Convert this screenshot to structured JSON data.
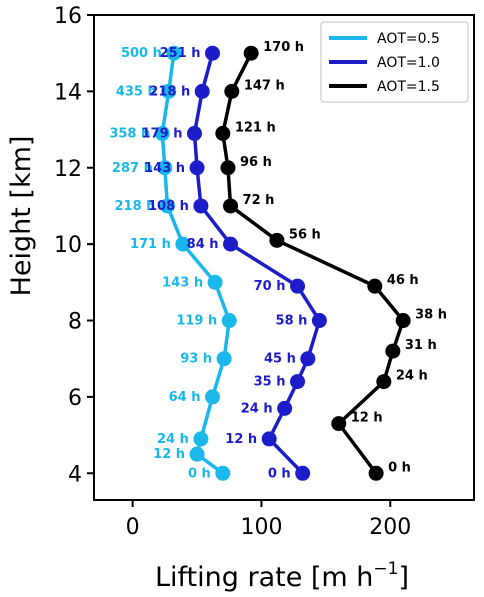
{
  "chart_data": {
    "type": "line",
    "xlabel": "Lifting rate [m h",
    "xlabel_sup": "−1",
    "xlabel_close": "]",
    "ylabel": "Height [km]",
    "xlim": [
      -30,
      265
    ],
    "ylim": [
      3.3,
      16
    ],
    "xticks": [
      0,
      100,
      200
    ],
    "yticks": [
      4,
      6,
      8,
      10,
      12,
      14,
      16
    ],
    "legend_position": "top-right",
    "grid": false,
    "series": [
      {
        "name": "AOT=0.5",
        "color": "#1ab8ea",
        "points": [
          {
            "x": 70,
            "y": 4.0,
            "label": "0 h"
          },
          {
            "x": 50,
            "y": 4.5,
            "label": "12 h"
          },
          {
            "x": 53,
            "y": 4.9,
            "label": "24 h"
          },
          {
            "x": 62,
            "y": 6.0,
            "label": "64 h"
          },
          {
            "x": 71,
            "y": 7.0,
            "label": "93 h"
          },
          {
            "x": 75,
            "y": 8.0,
            "label": "119 h"
          },
          {
            "x": 64,
            "y": 9.0,
            "label": "143 h"
          },
          {
            "x": 39,
            "y": 10.0,
            "label": "171 h"
          },
          {
            "x": 27,
            "y": 11.0,
            "label": "218 h"
          },
          {
            "x": 25,
            "y": 12.0,
            "label": "287 h"
          },
          {
            "x": 23,
            "y": 12.9,
            "label": "358 h"
          },
          {
            "x": 28,
            "y": 14.0,
            "label": "435 h"
          },
          {
            "x": 32,
            "y": 15.0,
            "label": "500 h"
          }
        ]
      },
      {
        "name": "AOT=1.0",
        "color": "#1c1cc9",
        "points": [
          {
            "x": 132,
            "y": 4.0,
            "label": "0 h"
          },
          {
            "x": 106,
            "y": 4.9,
            "label": "12 h"
          },
          {
            "x": 118,
            "y": 5.7,
            "label": "24 h"
          },
          {
            "x": 128,
            "y": 6.4,
            "label": "35 h"
          },
          {
            "x": 136,
            "y": 7.0,
            "label": "45 h"
          },
          {
            "x": 145,
            "y": 8.0,
            "label": "58 h"
          },
          {
            "x": 128,
            "y": 8.9,
            "label": "70 h"
          },
          {
            "x": 76,
            "y": 10.0,
            "label": "84 h"
          },
          {
            "x": 53,
            "y": 11.0,
            "label": "108 h"
          },
          {
            "x": 50,
            "y": 12.0,
            "label": "143 h"
          },
          {
            "x": 48,
            "y": 12.9,
            "label": "179 h"
          },
          {
            "x": 54,
            "y": 14.0,
            "label": "218 h"
          },
          {
            "x": 62,
            "y": 15.0,
            "label": "251 h"
          }
        ]
      },
      {
        "name": "AOT=1.5",
        "color": "#000000",
        "points": [
          {
            "x": 189,
            "y": 4.0,
            "label": "0 h"
          },
          {
            "x": 160,
            "y": 5.3,
            "label": "12 h"
          },
          {
            "x": 195,
            "y": 6.4,
            "label": "24 h"
          },
          {
            "x": 202,
            "y": 7.2,
            "label": "31 h"
          },
          {
            "x": 210,
            "y": 8.0,
            "label": "38 h"
          },
          {
            "x": 188,
            "y": 8.9,
            "label": "46 h"
          },
          {
            "x": 112,
            "y": 10.1,
            "label": "56 h"
          },
          {
            "x": 76,
            "y": 11.0,
            "label": "72 h"
          },
          {
            "x": 74,
            "y": 12.0,
            "label": "96 h"
          },
          {
            "x": 70,
            "y": 12.9,
            "label": "121 h"
          },
          {
            "x": 77,
            "y": 14.0,
            "label": "147 h"
          },
          {
            "x": 92,
            "y": 15.0,
            "label": "170 h"
          }
        ]
      }
    ]
  }
}
